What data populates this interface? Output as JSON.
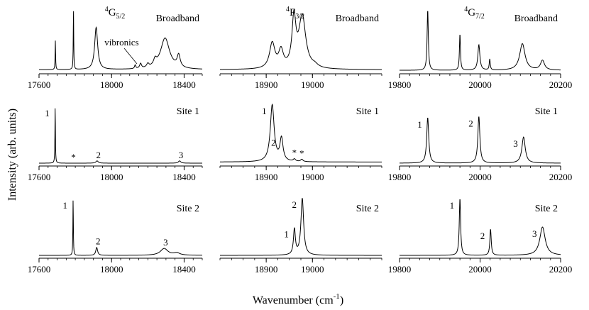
{
  "chart_data": {
    "type": "line",
    "ylabel": "Intensity (arb. units)",
    "xlabel_main": "Wavenumber (cm",
    "xlabel_sup": "-1",
    "xlabel_close": ")",
    "columns": [
      {
        "title_sup": "4",
        "title_main": "G",
        "title_sub": "5/2",
        "xlim": [
          17600,
          18500
        ],
        "ticks": [
          17600,
          18000,
          18400
        ]
      },
      {
        "title_sup": "4",
        "title_main": "F",
        "title_sub": "3/2",
        "xlim": [
          18800,
          19150
        ],
        "ticks": [
          18900,
          19000
        ]
      },
      {
        "title_sup": "4",
        "title_main": "G",
        "title_sub": "7/2",
        "xlim": [
          19800,
          20200
        ],
        "ticks": [
          19800,
          20000,
          20200
        ]
      }
    ],
    "rows": [
      {
        "label": "Broadband",
        "panels": [
          {
            "baseline": 0.02,
            "peaks": [
              {
                "x": 17690,
                "h": 0.48,
                "w": 1.5
              },
              {
                "x": 17790,
                "h": 1.0,
                "w": 1.5
              },
              {
                "x": 17915,
                "h": 0.7,
                "w": 10
              },
              {
                "x": 18130,
                "h": 0.06,
                "w": 4
              },
              {
                "x": 18160,
                "h": 0.08,
                "w": 6
              },
              {
                "x": 18200,
                "h": 0.06,
                "w": 8
              },
              {
                "x": 18240,
                "h": 0.1,
                "w": 10
              },
              {
                "x": 18295,
                "h": 0.52,
                "w": 30
              },
              {
                "x": 18370,
                "h": 0.2,
                "w": 10
              }
            ],
            "annotations": [
              {
                "text": "vibronics",
                "x": 18000
              }
            ]
          },
          {
            "baseline": 0.02,
            "peaks": [
              {
                "x": 18913,
                "h": 0.42,
                "w": 7
              },
              {
                "x": 18932,
                "h": 0.28,
                "w": 6
              },
              {
                "x": 18960,
                "h": 0.8,
                "w": 5
              },
              {
                "x": 18978,
                "h": 0.86,
                "w": 9
              },
              {
                "x": 19005,
                "h": 0.04,
                "w": 8
              }
            ],
            "annotations": []
          },
          {
            "baseline": 0.01,
            "peaks": [
              {
                "x": 19870,
                "h": 1.0,
                "w": 1.8
              },
              {
                "x": 19950,
                "h": 0.6,
                "w": 1.5
              },
              {
                "x": 19997,
                "h": 0.42,
                "w": 3
              },
              {
                "x": 20024,
                "h": 0.18,
                "w": 1.5
              },
              {
                "x": 20105,
                "h": 0.44,
                "w": 8
              },
              {
                "x": 20155,
                "h": 0.16,
                "w": 6
              }
            ],
            "annotations": []
          }
        ]
      },
      {
        "label": "Site 1",
        "panels": [
          {
            "baseline": 0.0,
            "peaks": [
              {
                "x": 17689,
                "h": 1.0,
                "w": 1.5
              },
              {
                "x": 17920,
                "h": 0.04,
                "w": 8
              },
              {
                "x": 18375,
                "h": 0.04,
                "w": 8
              }
            ],
            "annotations": [
              {
                "text": "1",
                "x": 17689
              },
              {
                "text": "*",
                "x": 17790
              },
              {
                "text": "2",
                "x": 17920
              },
              {
                "text": "3",
                "x": 18375
              }
            ]
          },
          {
            "baseline": 0.02,
            "peaks": [
              {
                "x": 18913,
                "h": 1.0,
                "w": 5
              },
              {
                "x": 18933,
                "h": 0.4,
                "w": 4
              },
              {
                "x": 18961,
                "h": 0.04,
                "w": 3
              },
              {
                "x": 18977,
                "h": 0.04,
                "w": 3
              }
            ],
            "annotations": [
              {
                "text": "1",
                "x": 18913
              },
              {
                "text": "2",
                "x": 18933
              },
              {
                "text": "*",
                "x": 18961
              },
              {
                "text": "*",
                "x": 18977
              }
            ]
          },
          {
            "baseline": 0.0,
            "peaks": [
              {
                "x": 19870,
                "h": 0.8,
                "w": 3
              },
              {
                "x": 19997,
                "h": 0.82,
                "w": 3
              },
              {
                "x": 20108,
                "h": 0.46,
                "w": 5
              }
            ],
            "annotations": [
              {
                "text": "1",
                "x": 19870
              },
              {
                "text": "2",
                "x": 19997
              },
              {
                "text": "3",
                "x": 20108
              }
            ]
          }
        ]
      },
      {
        "label": "Site 2",
        "panels": [
          {
            "baseline": 0.0,
            "peaks": [
              {
                "x": 17788,
                "h": 1.0,
                "w": 1.5
              },
              {
                "x": 17918,
                "h": 0.14,
                "w": 6
              },
              {
                "x": 18290,
                "h": 0.12,
                "w": 25
              },
              {
                "x": 18360,
                "h": 0.04,
                "w": 20
              }
            ],
            "annotations": [
              {
                "text": "1",
                "x": 17788
              },
              {
                "text": "2",
                "x": 17918
              },
              {
                "text": "3",
                "x": 18290
              }
            ]
          },
          {
            "baseline": 0.0,
            "peaks": [
              {
                "x": 18961,
                "h": 0.45,
                "w": 2.5
              },
              {
                "x": 18978,
                "h": 1.0,
                "w": 3.5
              }
            ],
            "annotations": [
              {
                "text": "1",
                "x": 18961
              },
              {
                "text": "2",
                "x": 18978
              }
            ]
          },
          {
            "baseline": 0.0,
            "peaks": [
              {
                "x": 19950,
                "h": 1.0,
                "w": 2
              },
              {
                "x": 20026,
                "h": 0.46,
                "w": 2
              },
              {
                "x": 20155,
                "h": 0.5,
                "w": 8
              }
            ],
            "annotations": [
              {
                "text": "1",
                "x": 19950
              },
              {
                "text": "2",
                "x": 20026
              },
              {
                "text": "3",
                "x": 20155
              }
            ]
          }
        ]
      }
    ]
  }
}
